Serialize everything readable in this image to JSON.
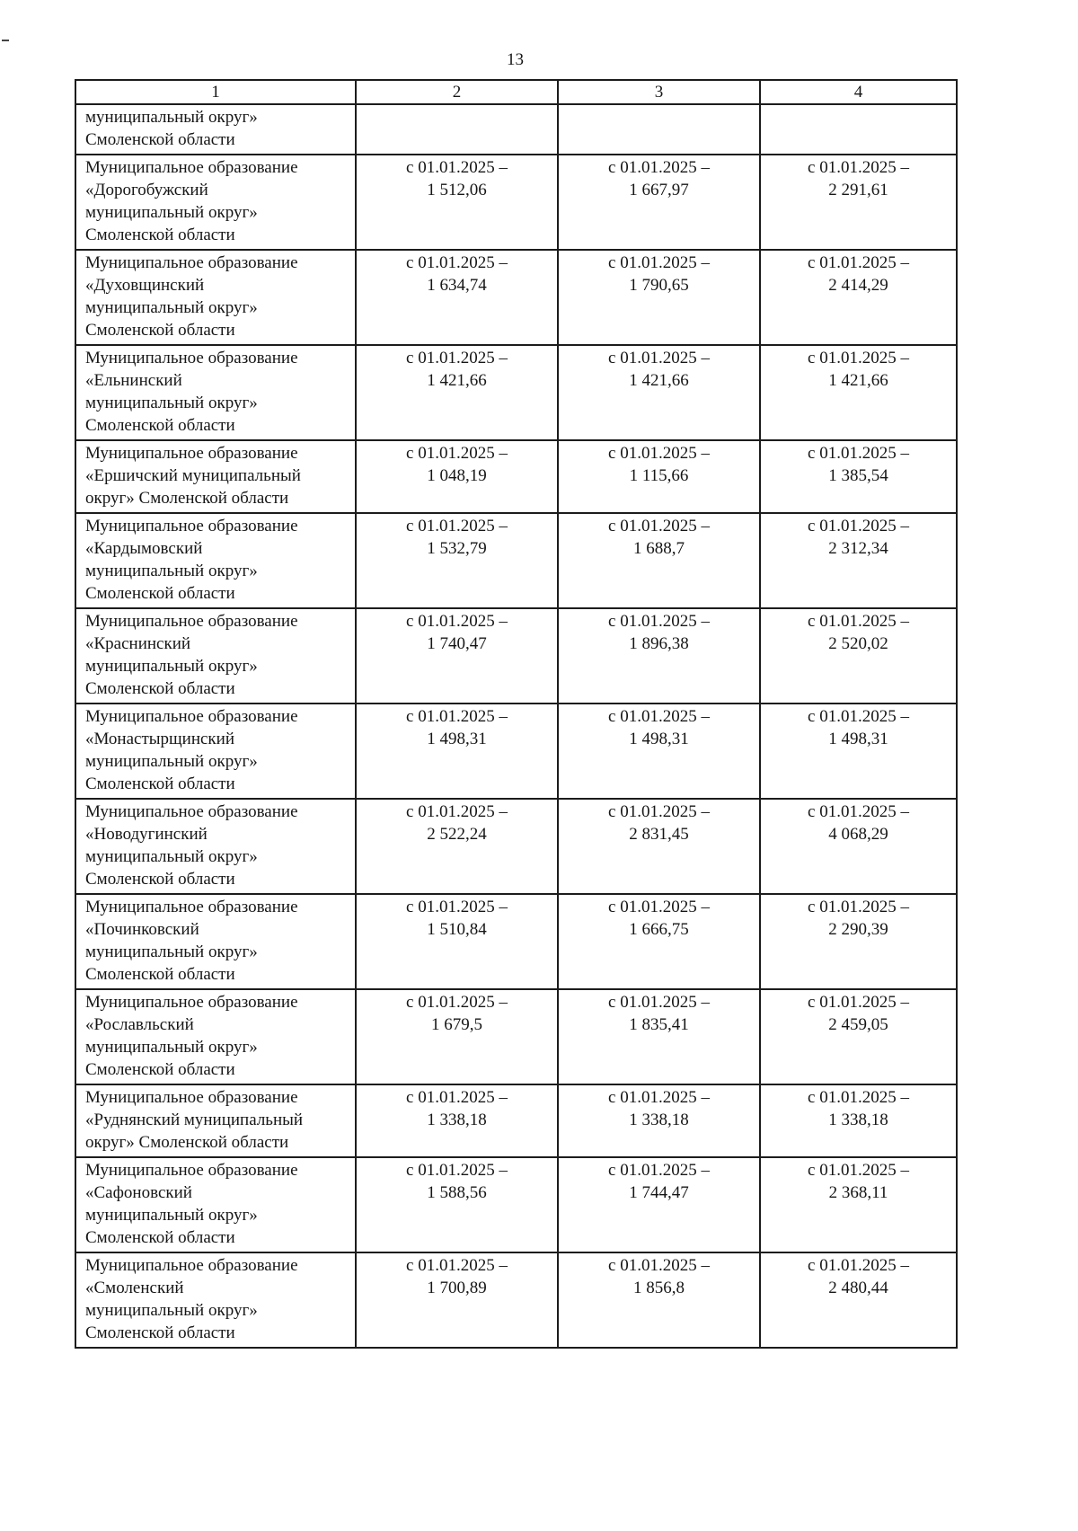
{
  "page": {
    "number": "13"
  },
  "table": {
    "headers": [
      "1",
      "2",
      "3",
      "4"
    ],
    "rows": [
      {
        "name": "муниципальный округ»\nСмоленской области",
        "c2": "",
        "c3": "",
        "c4": ""
      },
      {
        "name": "Муниципальное образование\n«Дорогобужский\nмуниципальный округ»\nСмоленской области",
        "c2": "с 01.01.2025 –\n1 512,06",
        "c3": "с 01.01.2025 –\n1 667,97",
        "c4": "с 01.01.2025 –\n2 291,61"
      },
      {
        "name": "Муниципальное образование\n«Духовщинский\nмуниципальный округ»\nСмоленской области",
        "c2": "с 01.01.2025 –\n1 634,74",
        "c3": "с 01.01.2025 –\n1 790,65",
        "c4": "с 01.01.2025 –\n2 414,29"
      },
      {
        "name": "Муниципальное образование\n«Ельнинский\nмуниципальный округ»\nСмоленской области",
        "c2": "с 01.01.2025 –\n1 421,66",
        "c3": "с 01.01.2025 –\n1 421,66",
        "c4": "с 01.01.2025 –\n1 421,66"
      },
      {
        "name": "Муниципальное образование\n«Ершичский муниципальный\nокруг» Смоленской области",
        "c2": "с 01.01.2025 –\n1 048,19",
        "c3": "с 01.01.2025 –\n1 115,66",
        "c4": "с 01.01.2025 –\n1 385,54"
      },
      {
        "name": "Муниципальное образование\n«Кардымовский\nмуниципальный округ»\nСмоленской области",
        "c2": "с 01.01.2025 –\n1 532,79",
        "c3": "с 01.01.2025 –\n1 688,7",
        "c4": "с 01.01.2025 –\n2 312,34"
      },
      {
        "name": "Муниципальное образование\n«Краснинский\nмуниципальный округ»\nСмоленской области",
        "c2": "с 01.01.2025 –\n1 740,47",
        "c3": "с 01.01.2025 –\n1 896,38",
        "c4": "с 01.01.2025 –\n2 520,02"
      },
      {
        "name": "Муниципальное образование\n«Монастырщинский\nмуниципальный округ»\nСмоленской области",
        "c2": "с 01.01.2025 –\n1 498,31",
        "c3": "с 01.01.2025 –\n1 498,31",
        "c4": "с 01.01.2025 –\n1 498,31"
      },
      {
        "name": "Муниципальное образование\n«Новодугинский\nмуниципальный округ»\nСмоленской области",
        "c2": "с 01.01.2025 –\n2 522,24",
        "c3": "с 01.01.2025 –\n2 831,45",
        "c4": "с 01.01.2025 –\n4 068,29"
      },
      {
        "name": "Муниципальное образование\n«Починковский\nмуниципальный округ»\nСмоленской области",
        "c2": "с 01.01.2025 –\n1 510,84",
        "c3": "с 01.01.2025 –\n1 666,75",
        "c4": "с 01.01.2025 –\n2 290,39"
      },
      {
        "name": "Муниципальное образование\n«Рославльский\nмуниципальный округ»\nСмоленской области",
        "c2": "с 01.01.2025 –\n1 679,5",
        "c3": "с 01.01.2025 –\n1 835,41",
        "c4": "с 01.01.2025 –\n2 459,05"
      },
      {
        "name": "Муниципальное образование\n«Руднянский муниципальный\nокруг» Смоленской области",
        "c2": "с 01.01.2025 –\n1 338,18",
        "c3": "с 01.01.2025 –\n1 338,18",
        "c4": "с 01.01.2025 –\n1 338,18"
      },
      {
        "name": "Муниципальное образование\n«Сафоновский\nмуниципальный округ»\nСмоленской области",
        "c2": "с 01.01.2025 –\n1 588,56",
        "c3": "с 01.01.2025 –\n1 744,47",
        "c4": "с 01.01.2025 –\n2 368,11"
      },
      {
        "name": "Муниципальное образование\n«Смоленский\nмуниципальный округ»\nСмоленской области",
        "c2": "с 01.01.2025 –\n1 700,89",
        "c3": "с 01.01.2025 –\n1 856,8",
        "c4": "с 01.01.2025 –\n2 480,44"
      }
    ]
  }
}
